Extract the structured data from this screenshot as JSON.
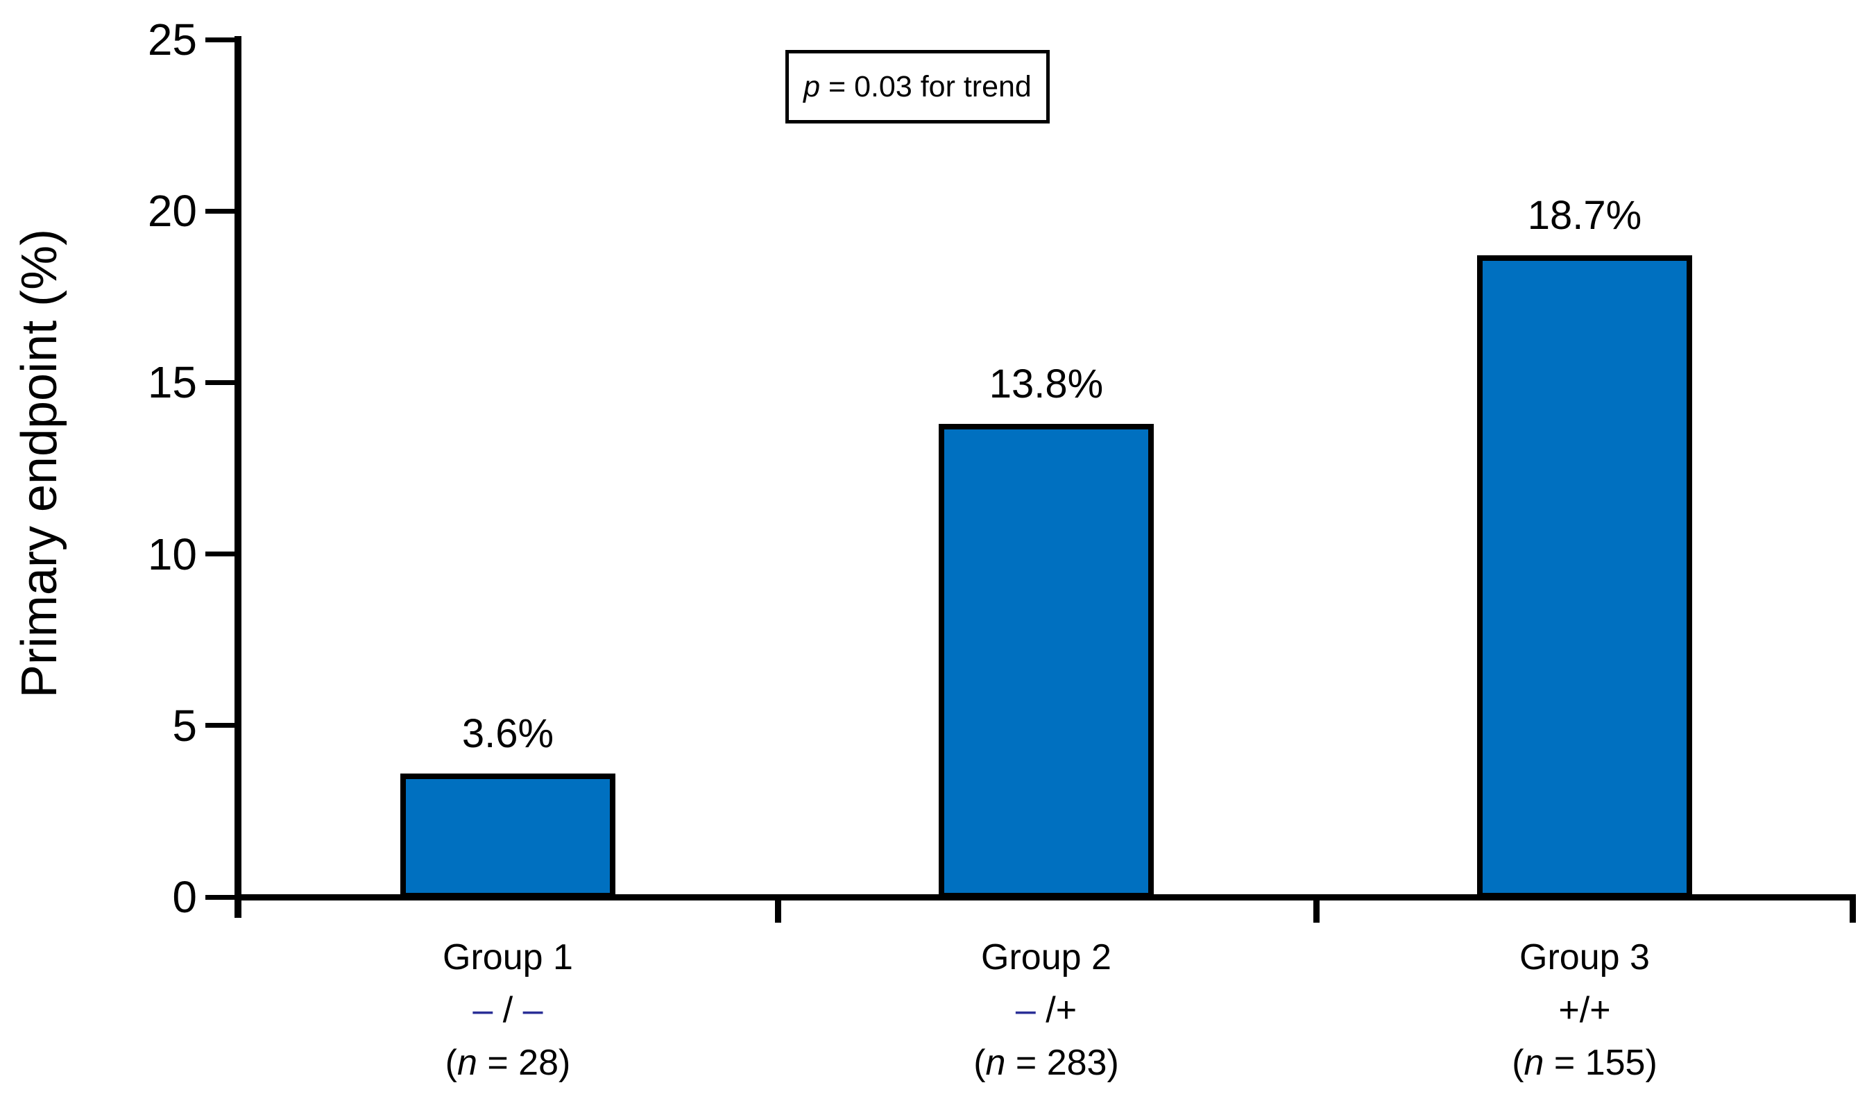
{
  "chart_data": {
    "type": "bar",
    "title": "",
    "xlabel": "",
    "ylabel": "Primary endpoint (%)",
    "ylim": [
      0,
      25
    ],
    "yticks": [
      0,
      5,
      10,
      15,
      20,
      25
    ],
    "grid": false,
    "legend": false,
    "annotation": "p = 0.03 for trend",
    "categories": [
      "Group 1",
      "Group 2",
      "Group 3"
    ],
    "genotypes": [
      "– / –",
      "– /+",
      "+/+"
    ],
    "n_values": [
      28,
      283,
      155
    ],
    "n_labels": [
      "(n = 28)",
      "(n = 283)",
      "(n = 155)"
    ],
    "values": [
      3.6,
      13.8,
      18.7
    ],
    "value_labels": [
      "3.6%",
      "13.8%",
      "18.7%"
    ],
    "genotype_segments": [
      [
        {
          "text": "–",
          "color": "#2B3097"
        },
        {
          "text": " / ",
          "color": "#000000"
        },
        {
          "text": "–",
          "color": "#2B3097"
        }
      ],
      [
        {
          "text": "–",
          "color": "#2B3097"
        },
        {
          "text": " /+",
          "color": "#000000"
        }
      ],
      [
        {
          "text": "+/+",
          "color": "#000000"
        }
      ]
    ],
    "colors": {
      "bar_fill": "#0070C0",
      "bar_border": "#000000",
      "axis": "#000000",
      "genotype_dash": "#2B3097",
      "text": "#000000"
    }
  },
  "annotation": {
    "p_italic": "p",
    "p_rest": " = 0.03 for trend"
  },
  "n_label_parts": {
    "prefix": "(",
    "italic": "n",
    "equals": " = ",
    "suffix": ")"
  }
}
